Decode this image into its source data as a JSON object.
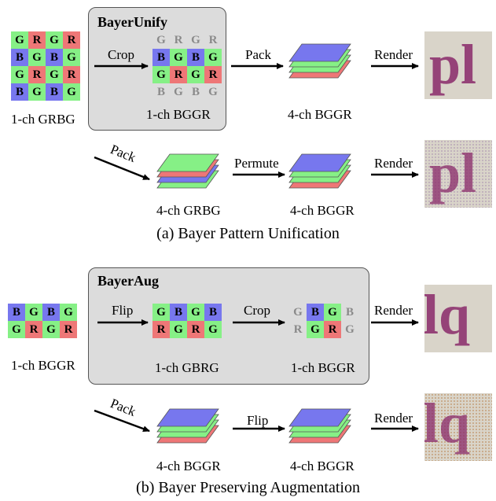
{
  "colors": {
    "R": "#ee7777",
    "G": "#86f086",
    "B": "#7777ee",
    "box_bg": "#dcdcdc",
    "ghost_text": "#8a8a8a",
    "thumb_bg": "#d9d4c9",
    "thumb_letter": "#8a2a6a"
  },
  "section_a": {
    "caption": "(a) Bayer Pattern Unification",
    "box_title": "BayerUnify",
    "input_label": "1-ch GRBG",
    "input_grid": [
      [
        "G",
        "R",
        "G",
        "R"
      ],
      [
        "B",
        "G",
        "B",
        "G"
      ],
      [
        "G",
        "R",
        "G",
        "R"
      ],
      [
        "B",
        "G",
        "B",
        "G"
      ]
    ],
    "crop_label": "Crop",
    "cropped_top_ghost": [
      "G",
      "R",
      "G",
      "R"
    ],
    "cropped_grid": [
      [
        "B",
        "G",
        "B",
        "G"
      ],
      [
        "G",
        "R",
        "G",
        "R"
      ]
    ],
    "cropped_bottom_ghost": [
      "B",
      "G",
      "B",
      "G"
    ],
    "cropped_label": "1-ch BGGR",
    "pack_label": "Pack",
    "stack_top_label": "4-ch BGGR",
    "render_label": "Render",
    "render_text_top": "pl",
    "pack_label_diag": "Pack",
    "stack_grbg_label": "4-ch GRBG",
    "permute_label": "Permute",
    "stack_bggr2_label": "4-ch BGGR",
    "render_label_2": "Render",
    "render_text_bottom": "pl"
  },
  "section_b": {
    "caption": "(b) Bayer Preserving Augmentation",
    "box_title": "BayerAug",
    "input_label": "1-ch BGGR",
    "input_grid": [
      [
        "B",
        "G",
        "B",
        "G"
      ],
      [
        "G",
        "R",
        "G",
        "R"
      ]
    ],
    "flip_label": "Flip",
    "flipped_grid": [
      [
        "G",
        "B",
        "G",
        "B"
      ],
      [
        "R",
        "G",
        "R",
        "G"
      ]
    ],
    "flipped_label": "1-ch GBRG",
    "crop_label": "Crop",
    "crop_left_ghost": [
      "G",
      "R"
    ],
    "crop_grid": [
      [
        "B",
        "G"
      ],
      [
        "G",
        "R"
      ]
    ],
    "crop_right_ghost": [
      "B",
      "G"
    ],
    "cropped_label": "1-ch BGGR",
    "render_label": "Render",
    "render_text_top": "lq",
    "pack_label_diag": "Pack",
    "stack_label_1": "4-ch BGGR",
    "flip_label_2": "Flip",
    "stack_label_2": "4-ch BGGR",
    "render_label_2": "Render",
    "render_text_bottom": "lq"
  }
}
